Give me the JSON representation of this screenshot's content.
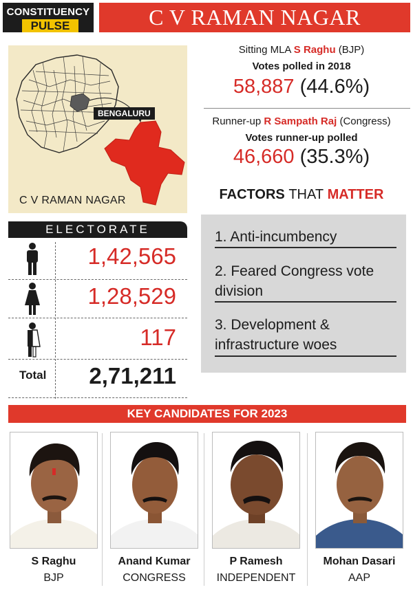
{
  "header": {
    "badge_line1": "CONSTITUENCY",
    "badge_line2": "PULSE",
    "title": "C V RAMAN NAGAR"
  },
  "map": {
    "city_tag": "BENGALURU",
    "constituency_label": "C V RAMAN NAGAR"
  },
  "sitting_mla": {
    "prefix": "Sitting MLA",
    "name": "S Raghu",
    "party": "(BJP)",
    "votes_label": "Votes polled in 2018",
    "votes": "58,887",
    "percent": "(44.6%)"
  },
  "runner_up": {
    "prefix": "Runner-up",
    "name": "R Sampath Raj",
    "party": "(Congress)",
    "votes_label": "Votes runner-up polled",
    "votes": "46,660",
    "percent": "(35.3%)"
  },
  "factors": {
    "heading_part1": "FACTORS",
    "heading_part2": "THAT",
    "heading_part3": "MATTER",
    "items": [
      "1. Anti-incumbency",
      "2. Feared Congress vote division",
      "3. Development & infrastructure woes"
    ]
  },
  "electorate": {
    "heading": "ELECTORATE",
    "rows": [
      {
        "icon": "male-icon",
        "value": "1,42,565"
      },
      {
        "icon": "female-icon",
        "value": "1,28,529"
      },
      {
        "icon": "transgender-icon",
        "value": "117"
      }
    ],
    "total_label": "Total",
    "total_value": "2,71,211"
  },
  "candidates": {
    "heading": "KEY CANDIDATES FOR 2023",
    "list": [
      {
        "name": "S Raghu",
        "party": "BJP"
      },
      {
        "name": "Anand Kumar",
        "party": "CONGRESS"
      },
      {
        "name": "P Ramesh",
        "party": "INDEPENDENT"
      },
      {
        "name": "Mohan Dasari",
        "party": "AAP"
      }
    ]
  },
  "colors": {
    "accent_red": "#e0392b",
    "text_red": "#d62b27",
    "badge_yellow": "#f2c300",
    "map_bg": "#f3e9c7",
    "factors_bg": "#d8d8d8"
  }
}
